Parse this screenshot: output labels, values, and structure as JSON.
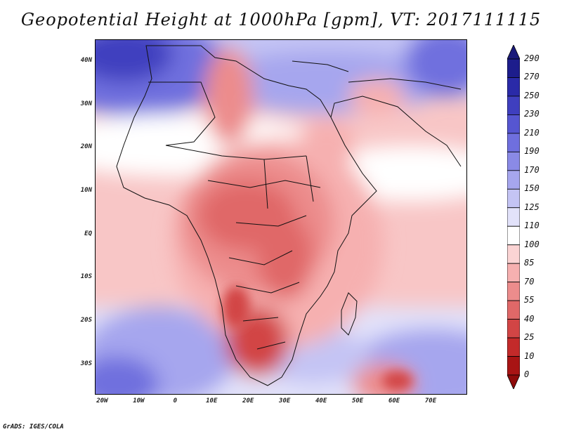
{
  "title": "Geopotential Height at 1000hPa [gpm], VT: 2017111115",
  "credit": "GrADS: IGES/COLA",
  "lat_axis": [
    {
      "label": "40N",
      "lat": 40
    },
    {
      "label": "30N",
      "lat": 30
    },
    {
      "label": "20N",
      "lat": 20
    },
    {
      "label": "10N",
      "lat": 10
    },
    {
      "label": "EQ",
      "lat": 0
    },
    {
      "label": "10S",
      "lat": -10
    },
    {
      "label": "20S",
      "lat": -20
    },
    {
      "label": "30S",
      "lat": -30
    }
  ],
  "lon_axis": [
    {
      "label": "20W",
      "lon": -20
    },
    {
      "label": "10W",
      "lon": -10
    },
    {
      "label": "0",
      "lon": 0
    },
    {
      "label": "10E",
      "lon": 10
    },
    {
      "label": "20E",
      "lon": 20
    },
    {
      "label": "30E",
      "lon": 30
    },
    {
      "label": "40E",
      "lon": 40
    },
    {
      "label": "50E",
      "lon": 50
    },
    {
      "label": "60E",
      "lon": 60
    },
    {
      "label": "70E",
      "lon": 70
    }
  ],
  "map_extent": {
    "lon_min": -22,
    "lon_max": 80,
    "lat_min": -37,
    "lat_max": 45
  },
  "colorbar": {
    "levels": [
      "290",
      "270",
      "250",
      "230",
      "210",
      "190",
      "170",
      "150",
      "125",
      "110",
      "100",
      "85",
      "70",
      "55",
      "40",
      "25",
      "10",
      "0"
    ],
    "colors": [
      "#1d1d8c",
      "#2a2aa8",
      "#3f3fbf",
      "#5656d1",
      "#6f6fde",
      "#8a8ae6",
      "#a6a6ee",
      "#c4c4f4",
      "#e2e2fa",
      "#ffffff",
      "#fbd4d4",
      "#f6b0b0",
      "#ec8c8c",
      "#e06868",
      "#d24545",
      "#c32a2a",
      "#a81414"
    ],
    "top_color": "#1a1a7a",
    "bottom_color": "#8e0b0b"
  }
}
